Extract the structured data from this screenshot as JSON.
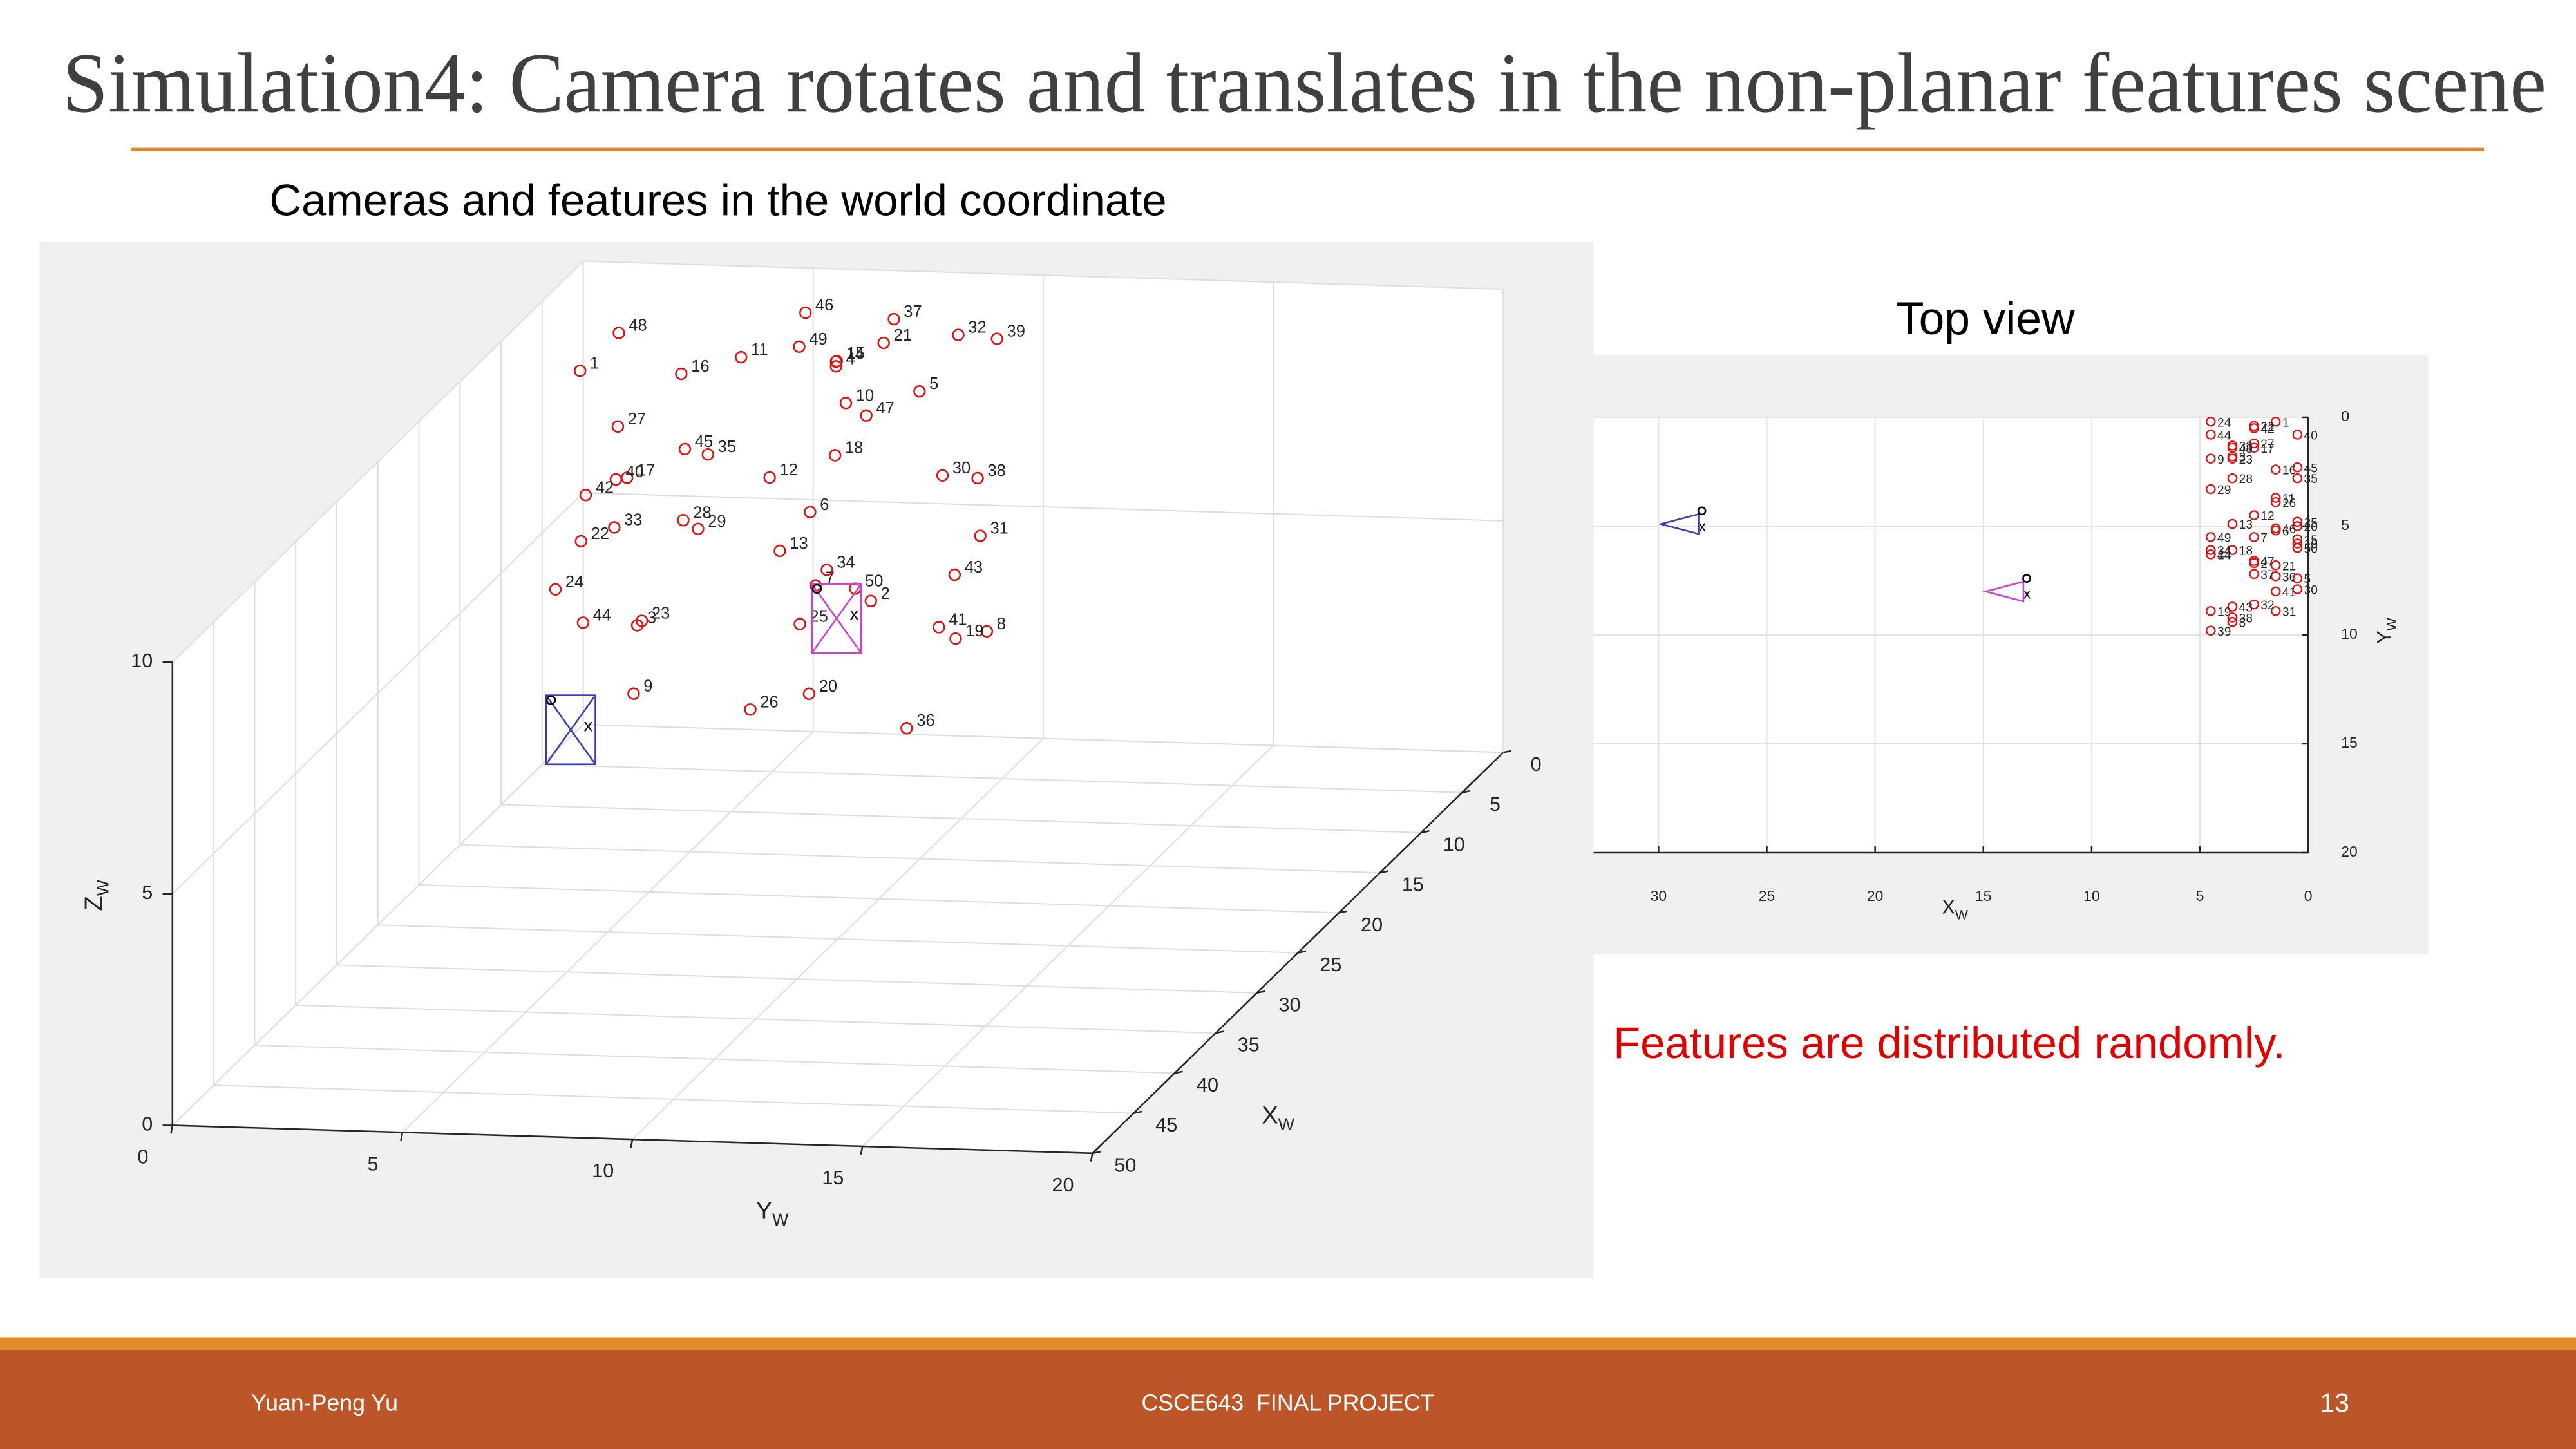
{
  "title": "Simulation4: Camera rotates and translates in the non-planar features scene",
  "note": "Features are distributed randomly.",
  "footer": {
    "author": "Yuan-Peng Yu",
    "course": "CSCE643  FINAL PROJECT",
    "page": "13"
  },
  "chart_data": [
    {
      "type": "scatter3d",
      "title": "Cameras and features in the world coordinate",
      "xlabel": "X",
      "xlabel_sub": "W",
      "ylabel": "Y",
      "ylabel_sub": "W",
      "zlabel": "Z",
      "zlabel_sub": "W",
      "xlim": [
        0,
        50
      ],
      "ylim": [
        0,
        20
      ],
      "zlim": [
        0,
        10
      ],
      "xticks": [
        0,
        5,
        10,
        15,
        20,
        25,
        30,
        35,
        40,
        45,
        50
      ],
      "yticks": [
        0,
        5,
        10,
        15,
        20
      ],
      "zticks": [
        0,
        5,
        10
      ],
      "grid": true,
      "color": "#e01010",
      "labels": [
        "1",
        "2",
        "3",
        "4",
        "5",
        "6",
        "7",
        "8",
        "9",
        "10",
        "11",
        "12",
        "13",
        "14",
        "15",
        "16",
        "17",
        "18",
        "19",
        "20",
        "21",
        "22",
        "23",
        "24",
        "25",
        "26",
        "27",
        "28",
        "29",
        "30",
        "31",
        "32",
        "33",
        "34",
        "35",
        "36",
        "37",
        "38",
        "39",
        "40",
        "41",
        "42",
        "43",
        "44",
        "45",
        "46",
        "47",
        "48",
        "49",
        "50"
      ],
      "x": [
        1.5,
        2.5,
        3.5,
        4.5,
        0.5,
        1.5,
        2.5,
        3.5,
        4.5,
        0.5,
        1.5,
        2.5,
        3.5,
        4.5,
        0.5,
        1.5,
        2.5,
        3.5,
        4.5,
        0.5,
        1.5,
        2.5,
        3.5,
        4.5,
        0.5,
        1.5,
        2.5,
        3.5,
        4.5,
        0.5,
        1.5,
        2.5,
        3.5,
        4.5,
        0.5,
        1.5,
        2.5,
        3.5,
        4.5,
        0.5,
        1.5,
        2.5,
        3.5,
        4.5,
        0.5,
        1.5,
        2.5,
        3.5,
        4.5,
        0.5
      ],
      "y": [
        0.2,
        6.7,
        1.8,
        6.3,
        7.4,
        5.2,
        5.5,
        9.4,
        1.9,
        5.8,
        3.7,
        4.5,
        4.9,
        6.3,
        5.6,
        2.4,
        1.4,
        6.1,
        8.9,
        5.0,
        6.8,
        0.4,
        1.9,
        0.2,
        4.8,
        3.9,
        1.2,
        2.8,
        3.3,
        7.9,
        8.9,
        8.6,
        1.3,
        6.1,
        2.8,
        7.3,
        7.2,
        9.2,
        9.8,
        0.8,
        8.0,
        0.5,
        8.7,
        0.8,
        2.3,
        5.1,
        6.6,
        1.4,
        5.5,
        6.0
      ],
      "z": [
        7.9,
        3.3,
        2.8,
        8.7,
        7.5,
        5.0,
        3.6,
        2.9,
        1.5,
        7.2,
        8.3,
        5.9,
        4.5,
        8.8,
        8.1,
        7.9,
        5.8,
        6.6,
        2.9,
        0.9,
        8.7,
        4.4,
        2.9,
        3.7,
        2.4,
        0.7,
        6.9,
        5.1,
        5.1,
        5.7,
        4.6,
        9.1,
        4.9,
        4.3,
        6.0,
        0.4,
        9.4,
        6.2,
        9.4,
        5.4,
        2.6,
        5.4,
        4.1,
        3.0,
        6.1,
        9.3,
        7.3,
        9.1,
        9.1,
        3.2
      ],
      "cameras": {
        "x": [
          28,
          13
        ],
        "y": [
          4.3,
          7.4
        ],
        "z": [
          5.5,
          5.4
        ],
        "colors": [
          "#3c3cb4",
          "#d040c8"
        ],
        "label": "x"
      }
    },
    {
      "type": "scatter",
      "title": "Top view",
      "xlabel": "X",
      "xlabel_sub": "W",
      "ylabel": "Y",
      "ylabel_sub": "W",
      "xlim": [
        33,
        0
      ],
      "ylim": [
        0,
        20
      ],
      "xticks": [
        30,
        25,
        20,
        15,
        10,
        5,
        0
      ],
      "yticks": [
        0,
        5,
        10,
        15,
        20
      ],
      "grid": true,
      "color": "#e01010",
      "labels": [
        "1",
        "2",
        "3",
        "4",
        "5",
        "6",
        "7",
        "8",
        "9",
        "10",
        "11",
        "12",
        "13",
        "14",
        "15",
        "16",
        "17",
        "18",
        "19",
        "20",
        "21",
        "22",
        "23",
        "24",
        "25",
        "26",
        "27",
        "28",
        "29",
        "30",
        "31",
        "32",
        "33",
        "34",
        "35",
        "36",
        "37",
        "38",
        "39",
        "40",
        "41",
        "42",
        "43",
        "44",
        "45",
        "46",
        "47",
        "48",
        "49",
        "50"
      ],
      "x": [
        1.5,
        2.5,
        3.5,
        4.5,
        0.5,
        1.5,
        2.5,
        3.5,
        4.5,
        0.5,
        1.5,
        2.5,
        3.5,
        4.5,
        0.5,
        1.5,
        2.5,
        3.5,
        4.5,
        0.5,
        1.5,
        2.5,
        3.5,
        4.5,
        0.5,
        1.5,
        2.5,
        3.5,
        4.5,
        0.5,
        1.5,
        2.5,
        3.5,
        4.5,
        0.5,
        1.5,
        2.5,
        3.5,
        4.5,
        0.5,
        1.5,
        2.5,
        3.5,
        4.5,
        0.5,
        1.5,
        2.5,
        3.5,
        4.5,
        0.5
      ],
      "y": [
        0.2,
        6.7,
        1.8,
        6.3,
        7.4,
        5.2,
        5.5,
        9.4,
        1.9,
        5.8,
        3.7,
        4.5,
        4.9,
        6.3,
        5.6,
        2.4,
        1.4,
        6.1,
        8.9,
        5.0,
        6.8,
        0.4,
        1.9,
        0.2,
        4.8,
        3.9,
        1.2,
        2.8,
        3.3,
        7.9,
        8.9,
        8.6,
        1.3,
        6.1,
        2.8,
        7.3,
        7.2,
        9.2,
        9.8,
        0.8,
        8.0,
        0.5,
        8.7,
        0.8,
        2.3,
        5.1,
        6.6,
        1.4,
        5.5,
        6.0
      ],
      "cameras": {
        "x": [
          28,
          13
        ],
        "y": [
          4.3,
          7.4
        ],
        "colors": [
          "#3c3cb4",
          "#d040c8"
        ],
        "label": "x"
      }
    }
  ]
}
